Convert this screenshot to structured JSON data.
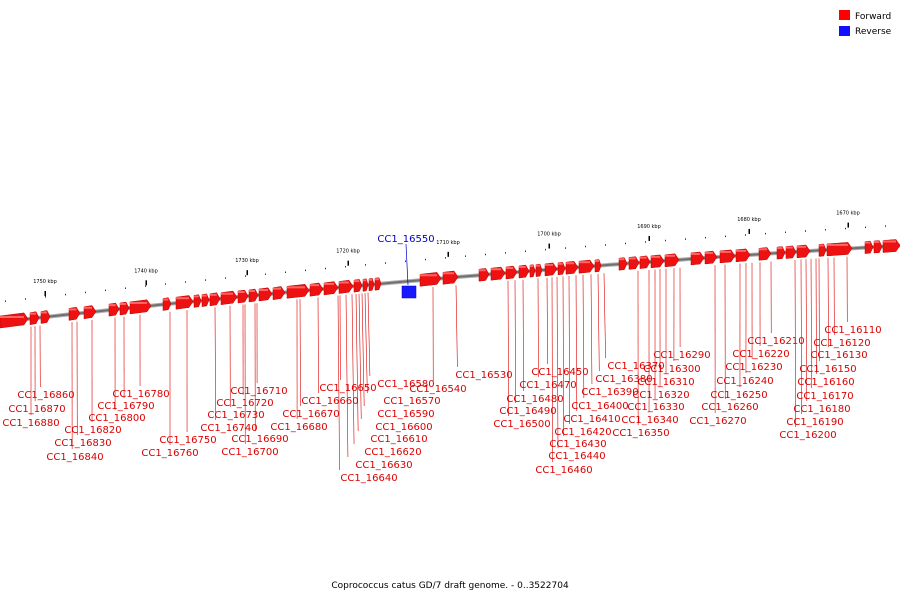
{
  "legend": {
    "forward_label": "Forward",
    "reverse_label": "Reverse",
    "forward_color": "#ff0000",
    "reverse_color": "#1010ff"
  },
  "caption": "Coprococcus catus GD/7 draft genome. - 0..3522704",
  "scale_labels": [
    "1750 kbp",
    "1740 kbp",
    "1730 kbp",
    "1720 kbp",
    "1710 kbp",
    "1700 kbp",
    "1690 kbp",
    "1680 kbp",
    "1670 kbp"
  ],
  "reverse_gene": "CC1_16550",
  "gene_labels": [
    "CC1_16860",
    "CC1_16870",
    "CC1_16880",
    "CC1_16820",
    "CC1_16830",
    "CC1_16840",
    "CC1_16780",
    "CC1_16790",
    "CC1_16800",
    "CC1_16750",
    "CC1_16760",
    "CC1_16710",
    "CC1_16720",
    "CC1_16730",
    "CC1_16740",
    "CC1_16690",
    "CC1_16700",
    "CC1_16680",
    "CC1_16670",
    "CC1_16660",
    "CC1_16650",
    "CC1_16580",
    "CC1_16570",
    "CC1_16590",
    "CC1_16600",
    "CC1_16610",
    "CC1_16620",
    "CC1_16630",
    "CC1_16640",
    "CC1_16530",
    "CC1_16540",
    "CC1_16450",
    "CC1_16470",
    "CC1_16480",
    "CC1_16490",
    "CC1_16500",
    "CC1_16370",
    "CC1_16380",
    "CC1_16390",
    "CC1_16400",
    "CC1_16410",
    "CC1_16420",
    "CC1_16430",
    "CC1_16440",
    "CC1_16460",
    "CC1_16290",
    "CC1_16300",
    "CC1_16310",
    "CC1_16320",
    "CC1_16330",
    "CC1_16340",
    "CC1_16350",
    "CC1_16210",
    "CC1_16220",
    "CC1_16230",
    "CC1_16240",
    "CC1_16250",
    "CC1_16260",
    "CC1_16270",
    "CC1_16110",
    "CC1_16120",
    "CC1_16130",
    "CC1_16150",
    "CC1_16160",
    "CC1_16170",
    "CC1_16180",
    "CC1_16190",
    "CC1_16200"
  ]
}
